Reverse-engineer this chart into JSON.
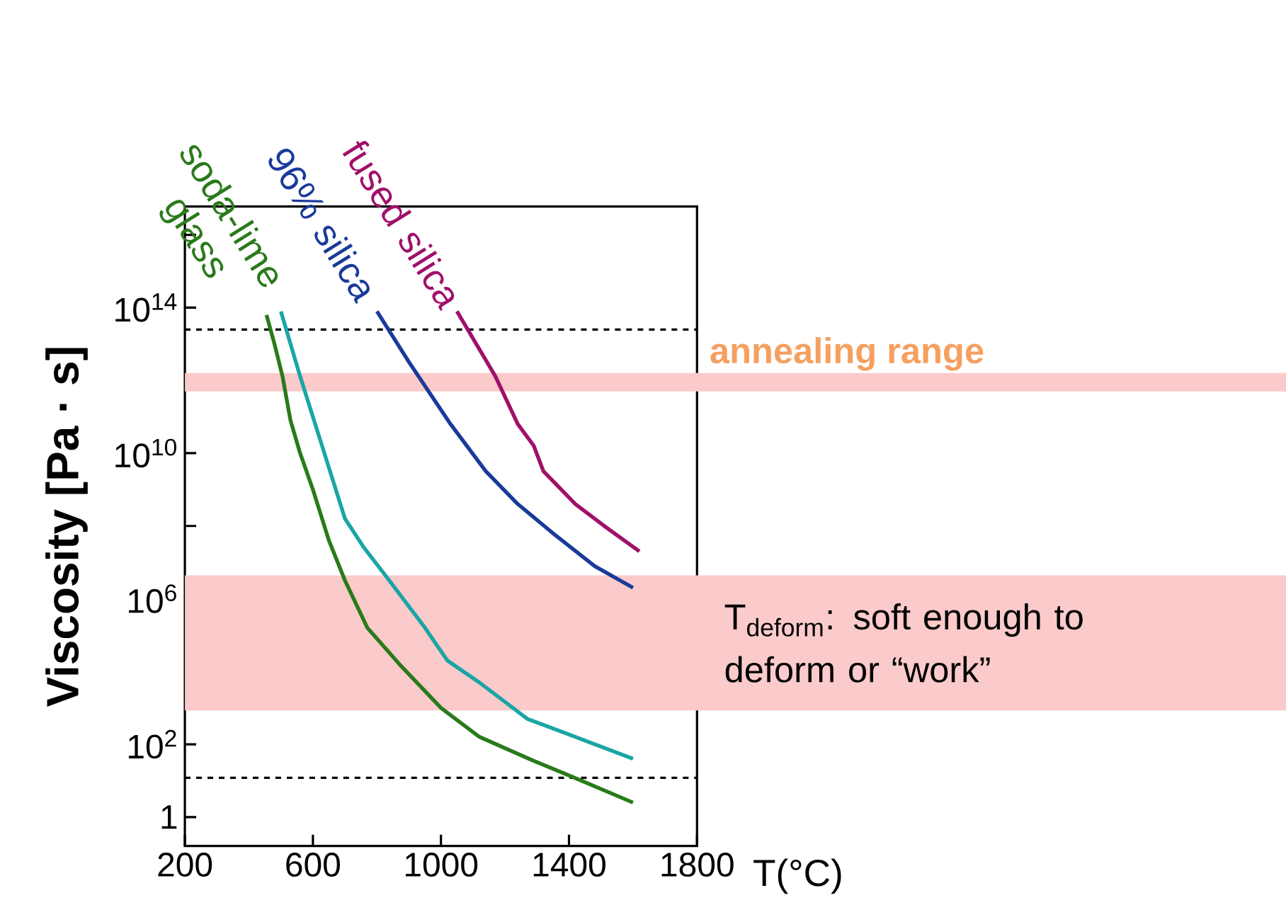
{
  "chart_data": {
    "type": "line",
    "xlabel": "T(°C)",
    "ylabel": "Viscosity [Pa · s]",
    "xlim": [
      200,
      1800
    ],
    "xticks": [
      200,
      600,
      1000,
      1400,
      1800
    ],
    "ylim": [
      0.16,
      6e+16
    ],
    "log": "y",
    "yticks": [
      {
        "value": 1,
        "label": "1"
      },
      {
        "value": 100,
        "label": "10$^{2}$"
      },
      {
        "value": 10000,
        "label": null
      },
      {
        "value": 1000000,
        "label": "10$^{6}$"
      },
      {
        "value": 100000000,
        "label": null
      },
      {
        "value": 10000000000,
        "label": "10$^{10}$"
      },
      {
        "value": 1000000000000,
        "label": null
      },
      {
        "value": 100000000000000,
        "label": "10$^{14}$"
      },
      {
        "value": 10000000000000000,
        "label": null
      }
    ],
    "marker": "none",
    "grid": false,
    "series": [
      {
        "name": "soda-lime glass",
        "color": "#2a7a1a",
        "x": [
          455,
          480,
          505,
          530,
          560,
          600,
          650,
          700,
          770,
          870,
          1000,
          1120,
          1290,
          1400,
          1600
        ],
        "values": [
          63000000000000.0,
          10000000000000.0,
          1300000000000.0,
          79000000000.0,
          10000000000.0,
          1000000000.0,
          40000000.0,
          3200000.0,
          160000.0,
          16000.0,
          1000,
          160,
          35,
          14,
          2.5
        ]
      },
      {
        "color": "#1aa5a5",
        "x": [
          500,
          530,
          560,
          600,
          625,
          700,
          760,
          830,
          950,
          1020,
          1120,
          1270,
          1390,
          1600
        ],
        "values": [
          79000000000000.0,
          10000000000000.0,
          1300000000000.0,
          100000000000.0,
          20000000000.0,
          160000000.0,
          25000000.0,
          4000000.0,
          160000.0,
          20000.0,
          5000,
          500,
          200,
          40
        ]
      },
      {
        "name": "96% silica",
        "color": "#1a3a9a",
        "x": [
          800,
          900,
          1030,
          1140,
          1240,
          1350,
          1480,
          1600
        ],
        "values": [
          79000000000000.0,
          3200000000000.0,
          63000000000.0,
          3200000000.0,
          400000000.0,
          63000000.0,
          7900000.0,
          2000000.0
        ]
      },
      {
        "name": "fused silica",
        "color": "#a0106a",
        "x": [
          1050,
          1170,
          1240,
          1290,
          1320,
          1420,
          1510,
          1620
        ],
        "values": [
          79000000000000.0,
          1300000000000.0,
          63000000000.0,
          16000000000.0,
          3200000000.0,
          400000000.0,
          100000000.0,
          20000000.0
        ]
      }
    ],
    "bands": [
      {
        "axis": "y",
        "from": 500000000000.0,
        "to": 1600000000000.0,
        "label": "annealing range",
        "color": "#fbcaca"
      },
      {
        "axis": "y",
        "from": 850,
        "to": 4400000.0,
        "label": "T$_{deform}$: soft enough to deform or “work”",
        "color": "#fbcaca"
      }
    ],
    "ref_lines": [
      {
        "axis": "y",
        "value": 25000000000000.0,
        "line_style": "dashed"
      },
      {
        "axis": "y",
        "value": 12,
        "line_style": "dashed"
      }
    ]
  }
}
